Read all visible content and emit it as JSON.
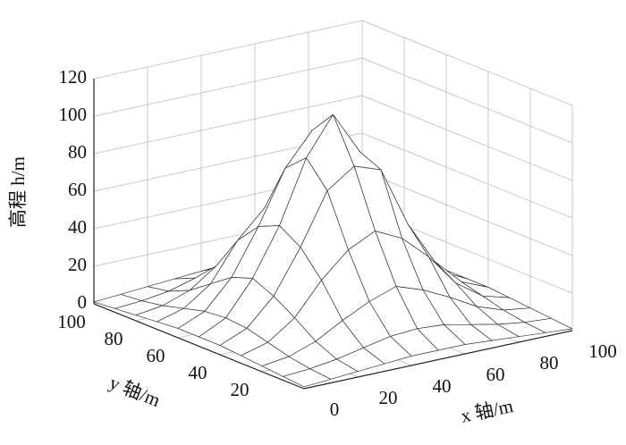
{
  "chart_data": {
    "type": "surface",
    "xlabel": "x 轴/m",
    "ylabel": "y 轴/m",
    "zlabel": "高程 h/m",
    "x": [
      0,
      10,
      20,
      30,
      40,
      50,
      60,
      70,
      80,
      90,
      100
    ],
    "y": [
      0,
      10,
      20,
      30,
      40,
      50,
      60,
      70,
      80,
      90,
      100
    ],
    "z": [
      [
        1,
        2,
        3,
        4,
        5,
        5,
        5,
        4,
        3,
        2,
        1
      ],
      [
        2,
        3,
        5,
        8,
        11,
        12,
        11,
        8,
        5,
        3,
        2
      ],
      [
        3,
        5,
        10,
        18,
        25,
        30,
        25,
        18,
        10,
        5,
        3
      ],
      [
        4,
        8,
        18,
        35,
        48,
        55,
        48,
        35,
        18,
        8,
        4
      ],
      [
        5,
        11,
        25,
        48,
        75,
        85,
        80,
        48,
        25,
        11,
        5
      ],
      [
        5,
        12,
        30,
        55,
        88,
        108,
        85,
        58,
        30,
        12,
        5
      ],
      [
        5,
        11,
        26,
        50,
        78,
        95,
        82,
        50,
        25,
        11,
        5
      ],
      [
        4,
        8,
        18,
        38,
        52,
        60,
        50,
        36,
        18,
        8,
        4
      ],
      [
        3,
        5,
        10,
        20,
        27,
        32,
        27,
        18,
        10,
        5,
        3
      ],
      [
        2,
        3,
        5,
        9,
        12,
        13,
        11,
        8,
        5,
        3,
        2
      ],
      [
        1,
        2,
        3,
        4,
        5,
        6,
        5,
        4,
        3,
        2,
        1
      ]
    ],
    "xlim": [
      0,
      100
    ],
    "ylim": [
      0,
      100
    ],
    "zlim": [
      0,
      120
    ],
    "xticks": [
      0,
      20,
      40,
      60,
      80,
      100
    ],
    "yticks": [
      20,
      40,
      60,
      80,
      100
    ],
    "zticks": [
      0,
      20,
      40,
      60,
      80,
      100,
      120
    ],
    "grid": true,
    "color": "#ffffff",
    "edgecolor": "#333333"
  }
}
